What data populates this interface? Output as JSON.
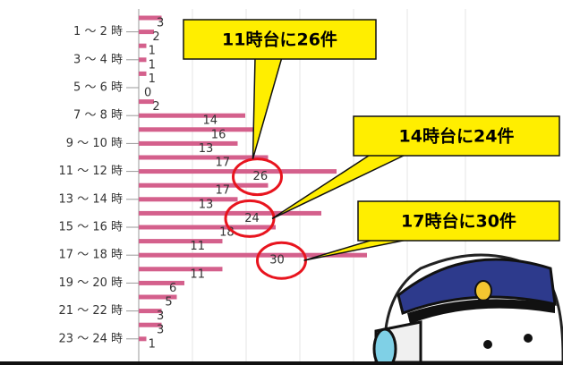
{
  "chart_data": {
    "type": "bar",
    "orientation": "horizontal",
    "categories": [
      null,
      "1 ～ 2 時",
      null,
      "3 ～ 4 時",
      null,
      "5 ～ 6 時",
      null,
      "7 ～ 8 時",
      null,
      "9 ～ 10 時",
      null,
      "11 ～ 12 時",
      null,
      "13 ～ 14 時",
      null,
      "15 ～ 16 時",
      null,
      "17 ～ 18 時",
      null,
      "19 ～ 20 時",
      null,
      "21 ～ 22 時",
      null,
      "23 ～ 24 時"
    ],
    "values": [
      3,
      2,
      1,
      1,
      1,
      0,
      2,
      14,
      16,
      13,
      17,
      26,
      17,
      13,
      24,
      18,
      11,
      30,
      11,
      6,
      5,
      3,
      3,
      1
    ],
    "color": "#d4608c",
    "xlim": [
      0,
      50
    ],
    "annotations": [
      {
        "text": "11時台に26件",
        "index": 11
      },
      {
        "text": "14時台に24件",
        "index": 14
      },
      {
        "text": "17時台に30件",
        "index": 17
      }
    ]
  }
}
